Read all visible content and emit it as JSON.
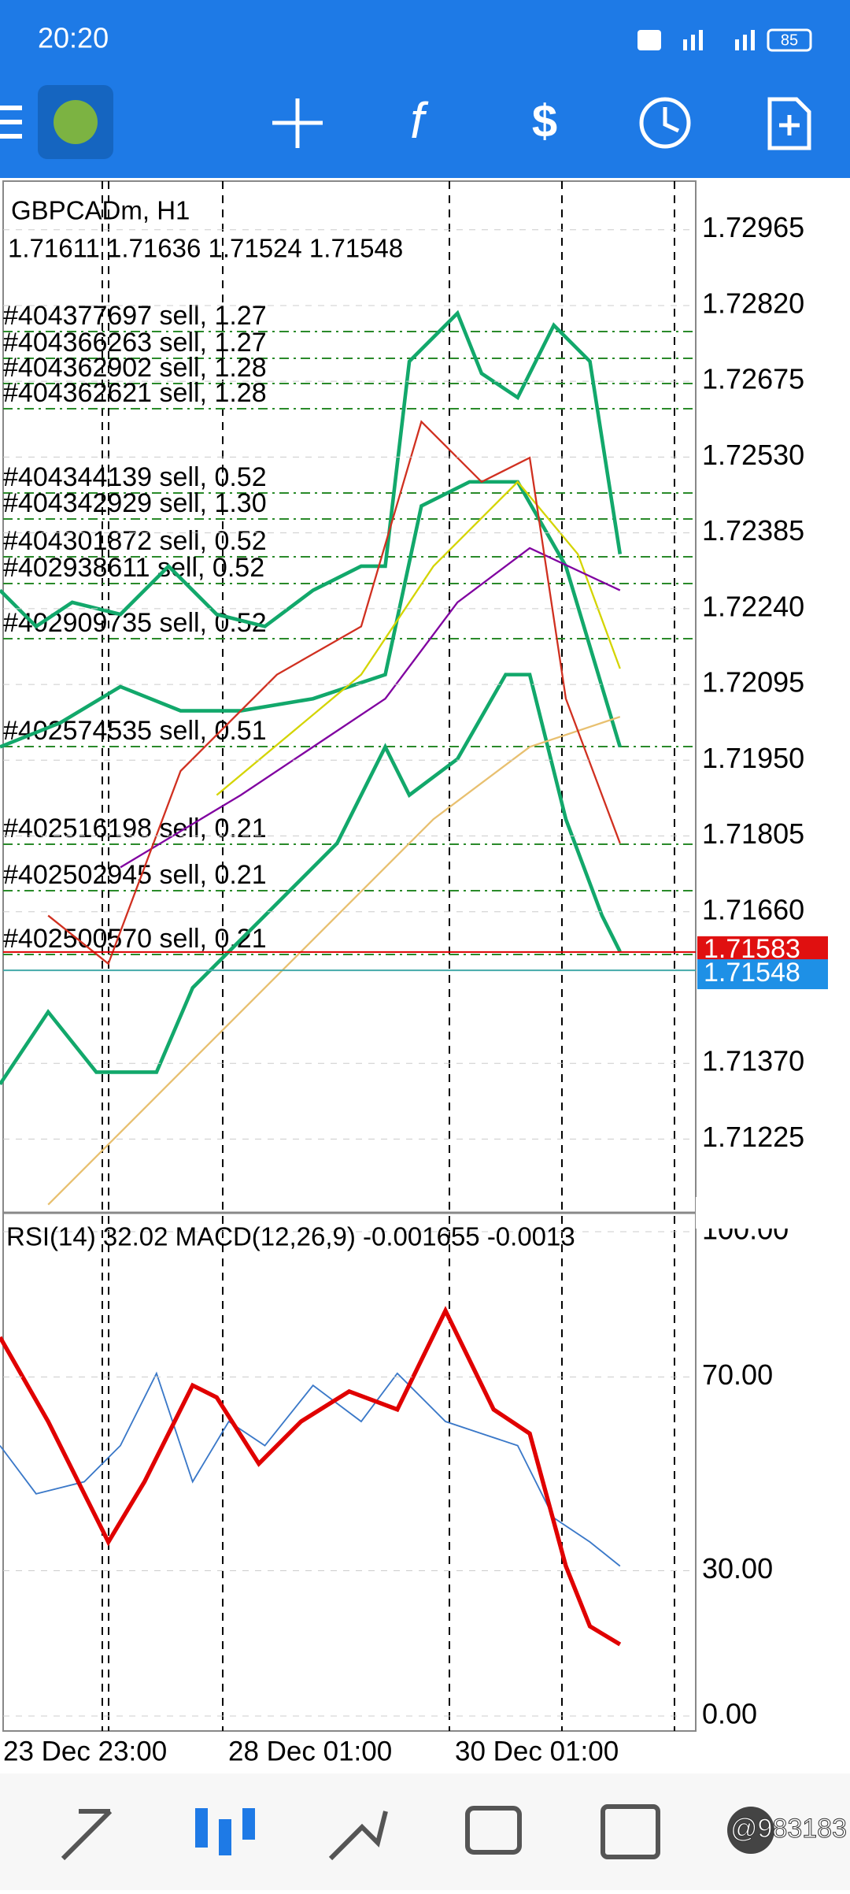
{
  "status_bar": {
    "time": "20:20",
    "battery": "85"
  },
  "chart": {
    "symbol": "GBPCADm, H1",
    "ohlc": "1.71611 1.71636 1.71524 1.71548",
    "price_ylim": [
      1.71087,
      1.73055
    ],
    "price_ticks": [
      {
        "value": 1.72965,
        "label": "1.72965"
      },
      {
        "value": 1.7282,
        "label": "1.72820"
      },
      {
        "value": 1.72675,
        "label": "1.72675"
      },
      {
        "value": 1.7253,
        "label": "1.72530"
      },
      {
        "value": 1.72385,
        "label": "1.72385"
      },
      {
        "value": 1.7224,
        "label": "1.72240"
      },
      {
        "value": 1.72095,
        "label": "1.72095"
      },
      {
        "value": 1.7195,
        "label": "1.71950"
      },
      {
        "value": 1.71805,
        "label": "1.71805"
      },
      {
        "value": 1.7166,
        "label": "1.71660"
      },
      {
        "value": 1.7137,
        "label": "1.71370"
      },
      {
        "value": 1.71225,
        "label": "1.71225"
      }
    ],
    "ask_price": 1.71583,
    "bid_price": 1.71548,
    "orders": [
      "#404377697 sell, 1.27",
      "#404366263 sell, 1.27",
      "#404362902 sell, 1.28",
      "#404362621 sell, 1.28",
      "#404344139 sell, 0.52",
      "#404342929 sell, 1.30",
      "#404301872 sell, 0.52",
      "#402938611 sell, 0.52",
      "#402909735 sell, 0.52",
      "#402574535 sell, 0.51",
      "#402516198 sell, 0.21",
      "#402502945 sell, 0.21",
      "#402500570 sell, 0.21"
    ],
    "indicator_label": "RSI(14) 32.02 MACD(12,26,9) -0.001655 -0.0013",
    "rsi_ylim": [
      0,
      100
    ],
    "rsi_ticks": [
      {
        "value": 100,
        "label": "100.00"
      },
      {
        "value": 70,
        "label": "70.00"
      },
      {
        "value": 30,
        "label": "30.00"
      },
      {
        "value": 0,
        "label": "0.00"
      }
    ],
    "time_labels": [
      "23 Dec 23:00",
      "28 Dec 01:00",
      "30 Dec 01:00"
    ]
  },
  "watermark": "@983183"
}
